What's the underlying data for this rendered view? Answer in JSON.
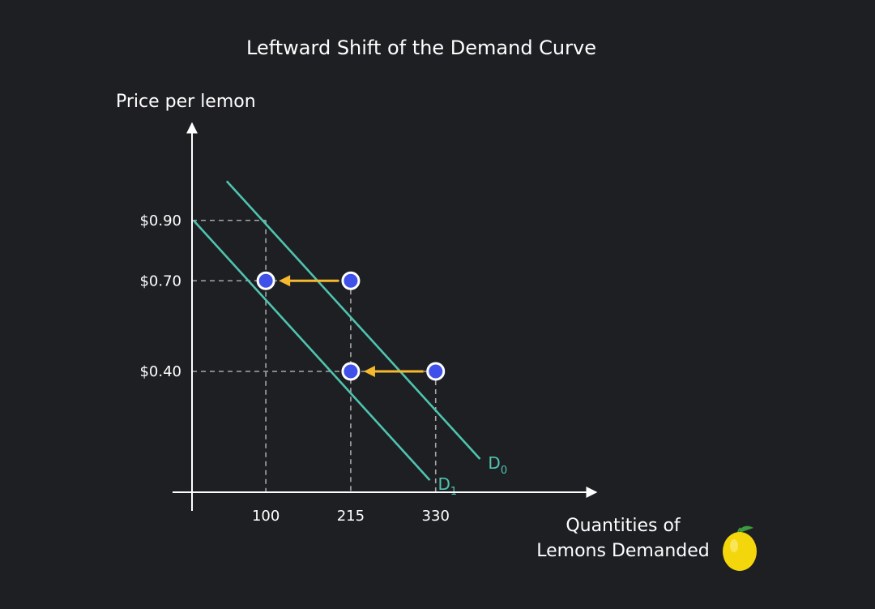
{
  "chart_data": {
    "type": "line",
    "title": "Leftward Shift of the Demand Curve",
    "ylabel": "Price per lemon",
    "xlabel_lines": [
      "Quantities of",
      "Lemons Demanded"
    ],
    "y_ticks": [
      {
        "value": 0.9,
        "label": "$0.90"
      },
      {
        "value": 0.7,
        "label": "$0.70"
      },
      {
        "value": 0.4,
        "label": "$0.40"
      }
    ],
    "x_ticks": [
      {
        "value": 100,
        "label": "100"
      },
      {
        "value": 215,
        "label": "215"
      },
      {
        "value": 330,
        "label": "330"
      }
    ],
    "xlim": [
      0,
      545
    ],
    "ylim": [
      0,
      1.18
    ],
    "series": [
      {
        "name": "D0",
        "label_main": "D",
        "label_sub": "0",
        "color": "#4fc4b0",
        "points": [
          [
            47,
            1.03
          ],
          [
            390,
            0.11
          ]
        ]
      },
      {
        "name": "D1",
        "label_main": "D",
        "label_sub": "1",
        "color": "#4fc4b0",
        "points": [
          [
            2,
            0.9
          ],
          [
            322,
            0.04
          ]
        ]
      }
    ],
    "markers": [
      {
        "x": 100,
        "y": 0.7,
        "series": "D1"
      },
      {
        "x": 215,
        "y": 0.7,
        "series": "D0"
      },
      {
        "x": 215,
        "y": 0.4,
        "series": "D1"
      },
      {
        "x": 330,
        "y": 0.4,
        "series": "D0"
      }
    ],
    "shift_arrows": [
      {
        "from": [
          215,
          0.7
        ],
        "to": [
          100,
          0.7
        ]
      },
      {
        "from": [
          330,
          0.4
        ],
        "to": [
          215,
          0.4
        ]
      }
    ],
    "guides": [
      {
        "x": 100,
        "y": 0.9
      },
      {
        "x": 215,
        "y": 0.7
      },
      {
        "x": 330,
        "y": 0.4
      }
    ],
    "colors": {
      "curve": "#4fc4b0",
      "marker_fill": "#3f51e8",
      "marker_stroke": "#ffffff",
      "arrow": "#f5b82e",
      "guide": "#a8a8a8",
      "axis": "#ffffff"
    }
  },
  "icons": {
    "lemon": "lemon-icon"
  }
}
